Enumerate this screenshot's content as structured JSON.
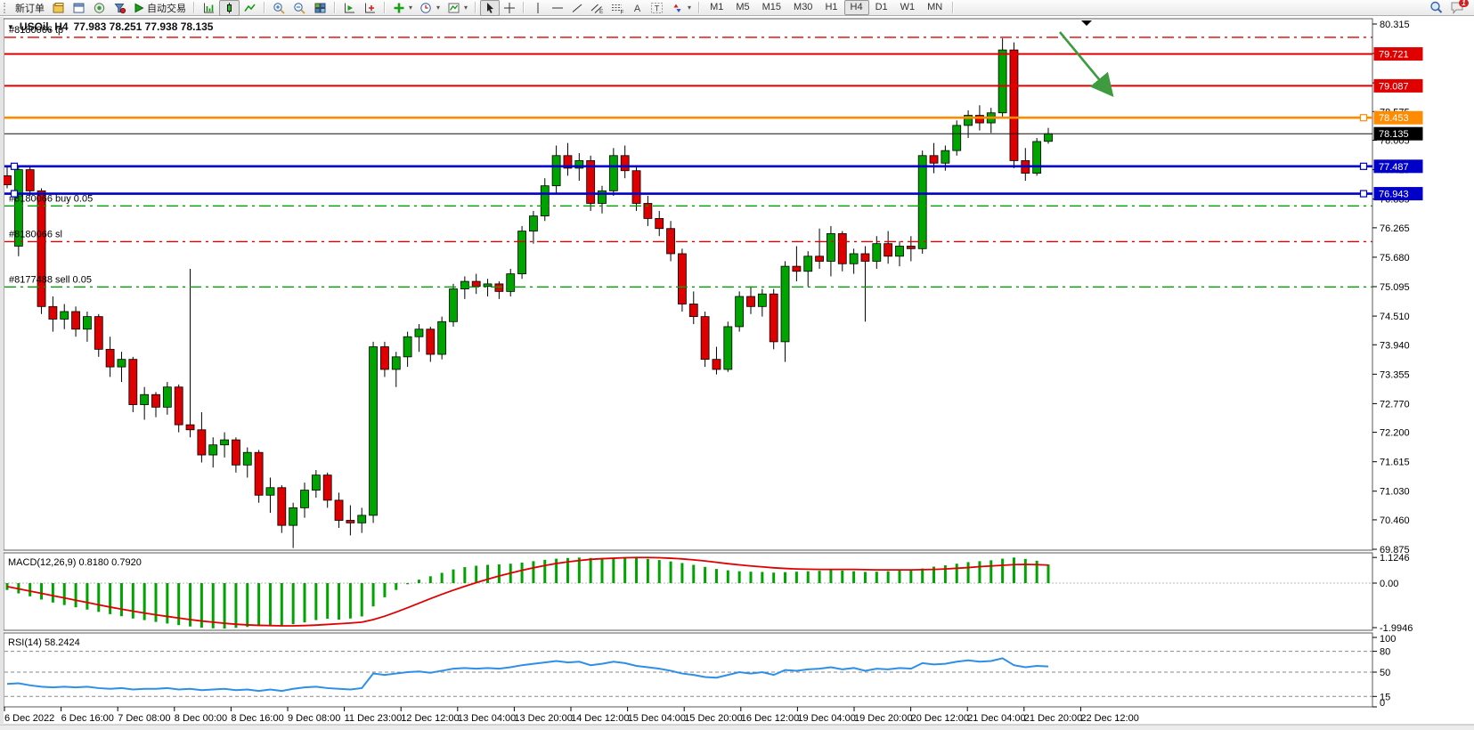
{
  "toolbar": {
    "new_order": "新订单",
    "autotrading": "自动交易",
    "timeframes": [
      "M1",
      "M5",
      "M15",
      "M30",
      "H1",
      "H4",
      "D1",
      "W1",
      "MN"
    ],
    "active_timeframe": "H4",
    "chat_badge": "1",
    "icon_names": [
      "market-watch-icon",
      "profiles-icon",
      "navigator-icon",
      "data-window-icon",
      "bar-chart-icon",
      "candlestick-chart-icon",
      "line-chart-icon",
      "zoom-in-icon",
      "zoom-out-icon",
      "tile-windows-icon",
      "auto-scroll-icon",
      "chart-shift-icon",
      "indicators-icon",
      "periods-icon",
      "templates-icon",
      "cursor-icon",
      "crosshair-icon",
      "vertical-line-icon",
      "horizontal-line-icon",
      "trendline-icon",
      "equidistant-channel-icon",
      "fibonacci-icon",
      "text-icon",
      "text-label-icon",
      "arrows-icon",
      "search-icon",
      "chat-icon"
    ]
  },
  "chart": {
    "symbol": "USOil, H4",
    "ohlc": "77.983 78.251 77.938 78.135",
    "current_price": 78.135,
    "orders": [
      {
        "label": "#8180066 tp",
        "price": 80.05,
        "color": "#e00000"
      },
      {
        "label": "#8180066 buy 0.05",
        "price": 76.7,
        "color": "#00a400"
      },
      {
        "label": "#8180066 sl",
        "price": 75.99,
        "color": "#e00000"
      },
      {
        "label": "#8177488 sell 0.05",
        "price": 75.09,
        "color": "#00a400"
      }
    ],
    "levels": [
      {
        "price": 79.721,
        "color": "#e00000",
        "width": 2,
        "handles": "none"
      },
      {
        "price": 79.087,
        "color": "#e00000",
        "width": 2,
        "handles": "none"
      },
      {
        "price": 78.453,
        "color": "#ff8c00",
        "width": 2.6,
        "handles": "right"
      },
      {
        "price": 77.487,
        "color": "#0000c8",
        "width": 2.6,
        "handles": "both"
      },
      {
        "price": 76.943,
        "color": "#0000c8",
        "width": 2.6,
        "handles": "both"
      }
    ],
    "price_axis_tags": [
      {
        "price": 79.721,
        "bg": "#e00000"
      },
      {
        "price": 79.087,
        "bg": "#e00000"
      },
      {
        "price": 78.453,
        "bg": "#ff8c00"
      },
      {
        "price": 78.135,
        "bg": "#000000"
      },
      {
        "price": 77.487,
        "bg": "#0000c8"
      },
      {
        "price": 76.943,
        "bg": "#0000c8"
      }
    ],
    "colors": {
      "up": "#00a400",
      "down": "#de0000",
      "wick": "#000000",
      "macd_hist": "#00a400",
      "macd_signal": "#e00000",
      "rsi_line": "#2e8fe6",
      "arrow": "#3f9b3f"
    }
  },
  "indicators": {
    "macd": {
      "label": "MACD(12,26,9) 0.8180 0.7920",
      "ticks": [
        "1.1246",
        "0.00",
        "-1.9946"
      ],
      "tick_values": [
        1.1246,
        0,
        -1.9946
      ]
    },
    "rsi": {
      "label": "RSI(14) 58.2424",
      "ticks": [
        "100",
        "80",
        "50",
        "15",
        "0"
      ],
      "tick_values": [
        100,
        80,
        50,
        15,
        0
      ],
      "levels": [
        80,
        50,
        15
      ]
    }
  },
  "chart_data": {
    "type": "candlestick",
    "symbol": "USOil",
    "timeframe": "H4",
    "title": "USOil, H4  77.983 78.251 77.938 78.135",
    "y_axis_ticks": [
      80.315,
      79.73,
      79.145,
      78.575,
      78.005,
      77.42,
      76.835,
      76.265,
      75.68,
      75.095,
      74.51,
      73.94,
      73.355,
      72.77,
      72.2,
      71.615,
      71.03,
      70.46,
      69.875
    ],
    "x_labels": [
      "6 Dec 2022",
      "6 Dec 16:00",
      "7 Dec 08:00",
      "8 Dec 00:00",
      "8 Dec 16:00",
      "9 Dec 08:00",
      "11 Dec 23:00",
      "12 Dec 12:00",
      "13 Dec 04:00",
      "13 Dec 20:00",
      "14 Dec 12:00",
      "15 Dec 04:00",
      "15 Dec 20:00",
      "16 Dec 12:00",
      "19 Dec 04:00",
      "19 Dec 20:00",
      "20 Dec 12:00",
      "21 Dec 04:00",
      "21 Dec 20:00",
      "22 Dec 12:00"
    ],
    "candles_ohlc": [
      [
        77.3,
        77.48,
        77.05,
        77.12
      ],
      [
        75.9,
        77.5,
        75.7,
        77.42
      ],
      [
        77.42,
        77.48,
        76.9,
        77.0
      ],
      [
        77.0,
        77.05,
        74.55,
        74.7
      ],
      [
        74.7,
        74.9,
        74.2,
        74.45
      ],
      [
        74.45,
        74.75,
        74.25,
        74.6
      ],
      [
        74.6,
        74.7,
        74.1,
        74.25
      ],
      [
        74.25,
        74.6,
        74.0,
        74.5
      ],
      [
        74.5,
        74.55,
        73.7,
        73.85
      ],
      [
        73.85,
        74.1,
        73.3,
        73.5
      ],
      [
        73.5,
        73.8,
        73.2,
        73.65
      ],
      [
        73.65,
        73.7,
        72.6,
        72.75
      ],
      [
        72.75,
        73.1,
        72.45,
        72.95
      ],
      [
        72.95,
        73.0,
        72.5,
        72.7
      ],
      [
        72.7,
        73.2,
        72.55,
        73.1
      ],
      [
        73.1,
        73.15,
        72.2,
        72.35
      ],
      [
        72.35,
        75.45,
        72.1,
        72.25
      ],
      [
        72.25,
        72.6,
        71.6,
        71.75
      ],
      [
        71.75,
        72.1,
        71.5,
        71.95
      ],
      [
        71.95,
        72.2,
        71.7,
        72.05
      ],
      [
        72.05,
        72.1,
        71.4,
        71.55
      ],
      [
        71.55,
        71.9,
        71.3,
        71.8
      ],
      [
        71.8,
        71.85,
        70.8,
        70.95
      ],
      [
        70.95,
        71.3,
        70.6,
        71.1
      ],
      [
        71.1,
        71.15,
        70.2,
        70.35
      ],
      [
        70.35,
        70.8,
        69.9,
        70.7
      ],
      [
        70.7,
        71.2,
        70.5,
        71.05
      ],
      [
        71.05,
        71.45,
        70.9,
        71.35
      ],
      [
        71.35,
        71.4,
        70.7,
        70.85
      ],
      [
        70.85,
        71.0,
        70.3,
        70.45
      ],
      [
        70.45,
        70.75,
        70.15,
        70.4
      ],
      [
        70.4,
        70.7,
        70.2,
        70.55
      ],
      [
        70.55,
        74.0,
        70.4,
        73.9
      ],
      [
        73.9,
        74.0,
        73.3,
        73.45
      ],
      [
        73.45,
        73.8,
        73.1,
        73.7
      ],
      [
        73.7,
        74.2,
        73.5,
        74.1
      ],
      [
        74.1,
        74.35,
        73.8,
        74.25
      ],
      [
        74.25,
        74.3,
        73.6,
        73.75
      ],
      [
        73.75,
        74.5,
        73.65,
        74.4
      ],
      [
        74.4,
        75.15,
        74.3,
        75.05
      ],
      [
        75.05,
        75.3,
        74.85,
        75.2
      ],
      [
        75.2,
        75.35,
        74.95,
        75.1
      ],
      [
        75.1,
        75.25,
        74.9,
        75.15
      ],
      [
        75.15,
        75.2,
        74.85,
        75.0
      ],
      [
        75.0,
        75.45,
        74.9,
        75.35
      ],
      [
        75.35,
        76.3,
        75.25,
        76.2
      ],
      [
        76.2,
        76.6,
        75.95,
        76.5
      ],
      [
        76.5,
        77.25,
        76.4,
        77.1
      ],
      [
        77.1,
        77.9,
        76.95,
        77.7
      ],
      [
        77.7,
        77.95,
        77.3,
        77.45
      ],
      [
        77.45,
        77.75,
        77.2,
        77.6
      ],
      [
        77.6,
        77.7,
        76.6,
        76.75
      ],
      [
        76.75,
        77.1,
        76.55,
        77.0
      ],
      [
        77.0,
        77.85,
        76.9,
        77.7
      ],
      [
        77.7,
        77.9,
        77.25,
        77.4
      ],
      [
        77.4,
        77.5,
        76.6,
        76.75
      ],
      [
        76.75,
        76.9,
        76.3,
        76.45
      ],
      [
        76.45,
        76.6,
        76.1,
        76.25
      ],
      [
        76.25,
        76.4,
        75.6,
        75.75
      ],
      [
        75.75,
        75.85,
        74.6,
        74.75
      ],
      [
        74.75,
        75.0,
        74.35,
        74.5
      ],
      [
        74.5,
        74.6,
        73.5,
        73.65
      ],
      [
        73.65,
        73.9,
        73.35,
        73.45
      ],
      [
        73.45,
        74.4,
        73.4,
        74.3
      ],
      [
        74.3,
        75.0,
        74.2,
        74.9
      ],
      [
        74.9,
        75.1,
        74.55,
        74.7
      ],
      [
        74.7,
        75.05,
        74.5,
        74.95
      ],
      [
        74.95,
        75.05,
        73.85,
        74.0
      ],
      [
        74.0,
        75.6,
        73.6,
        75.5
      ],
      [
        75.5,
        75.9,
        75.2,
        75.4
      ],
      [
        75.4,
        75.8,
        75.1,
        75.7
      ],
      [
        75.7,
        76.25,
        75.45,
        75.6
      ],
      [
        75.6,
        76.3,
        75.3,
        76.15
      ],
      [
        76.15,
        76.2,
        75.4,
        75.55
      ],
      [
        75.55,
        75.85,
        75.35,
        75.75
      ],
      [
        75.75,
        75.9,
        74.4,
        75.6
      ],
      [
        75.6,
        76.1,
        75.45,
        75.95
      ],
      [
        75.95,
        76.2,
        75.55,
        75.7
      ],
      [
        75.7,
        76.0,
        75.5,
        75.9
      ],
      [
        75.9,
        76.1,
        75.6,
        75.85
      ],
      [
        75.85,
        77.8,
        75.75,
        77.7
      ],
      [
        77.7,
        77.95,
        77.35,
        77.55
      ],
      [
        77.55,
        77.9,
        77.4,
        77.8
      ],
      [
        77.8,
        78.4,
        77.7,
        78.3
      ],
      [
        78.3,
        78.6,
        78.05,
        78.5
      ],
      [
        78.5,
        78.7,
        78.2,
        78.35
      ],
      [
        78.35,
        78.65,
        78.15,
        78.55
      ],
      [
        78.55,
        80.03,
        78.45,
        79.8
      ],
      [
        79.8,
        79.95,
        77.45,
        77.6
      ],
      [
        77.6,
        77.85,
        77.2,
        77.35
      ],
      [
        77.35,
        78.05,
        77.3,
        77.98
      ],
      [
        77.983,
        78.251,
        77.938,
        78.135
      ]
    ],
    "macd_histogram": [
      -0.3,
      -0.45,
      -0.58,
      -0.72,
      -0.85,
      -0.96,
      -1.06,
      -1.16,
      -1.26,
      -1.36,
      -1.45,
      -1.55,
      -1.62,
      -1.7,
      -1.77,
      -1.84,
      -1.9,
      -1.95,
      -1.98,
      -1.99,
      -1.96,
      -1.92,
      -1.88,
      -1.83,
      -1.86,
      -1.8,
      -1.72,
      -1.62,
      -1.56,
      -1.6,
      -1.55,
      -1.46,
      -1.02,
      -0.62,
      -0.3,
      -0.05,
      0.15,
      0.3,
      0.45,
      0.6,
      0.7,
      0.76,
      0.8,
      0.82,
      0.85,
      0.9,
      0.96,
      1.02,
      1.07,
      1.1,
      1.12,
      1.1,
      1.08,
      1.1,
      1.12,
      1.1,
      1.06,
      1.01,
      0.95,
      0.88,
      0.8,
      0.71,
      0.62,
      0.56,
      0.52,
      0.5,
      0.49,
      0.46,
      0.48,
      0.5,
      0.52,
      0.54,
      0.57,
      0.55,
      0.52,
      0.49,
      0.5,
      0.52,
      0.55,
      0.56,
      0.64,
      0.72,
      0.78,
      0.85,
      0.92,
      0.96,
      1.0,
      1.07,
      1.12,
      1.06,
      0.98,
      0.82
    ],
    "macd_signal": [
      -0.15,
      -0.25,
      -0.35,
      -0.45,
      -0.55,
      -0.65,
      -0.75,
      -0.85,
      -0.95,
      -1.05,
      -1.14,
      -1.23,
      -1.31,
      -1.39,
      -1.46,
      -1.53,
      -1.6,
      -1.66,
      -1.71,
      -1.76,
      -1.8,
      -1.83,
      -1.85,
      -1.86,
      -1.87,
      -1.87,
      -1.86,
      -1.84,
      -1.81,
      -1.78,
      -1.75,
      -1.71,
      -1.6,
      -1.45,
      -1.27,
      -1.08,
      -0.88,
      -0.68,
      -0.49,
      -0.31,
      -0.14,
      0.02,
      0.17,
      0.31,
      0.44,
      0.56,
      0.67,
      0.77,
      0.86,
      0.93,
      0.99,
      1.04,
      1.07,
      1.09,
      1.11,
      1.12,
      1.12,
      1.11,
      1.09,
      1.06,
      1.02,
      0.97,
      0.91,
      0.85,
      0.8,
      0.75,
      0.71,
      0.67,
      0.64,
      0.62,
      0.61,
      0.6,
      0.6,
      0.6,
      0.6,
      0.59,
      0.58,
      0.58,
      0.58,
      0.58,
      0.59,
      0.6,
      0.62,
      0.65,
      0.68,
      0.72,
      0.75,
      0.78,
      0.81,
      0.82,
      0.81,
      0.79
    ],
    "rsi": [
      33,
      34,
      31,
      29,
      28,
      29,
      28,
      29,
      27,
      26,
      27,
      25,
      26,
      26,
      27,
      25,
      26,
      24,
      25,
      26,
      24,
      25,
      23,
      25,
      23,
      26,
      28,
      29,
      27,
      26,
      25,
      27,
      48,
      46,
      48,
      50,
      51,
      49,
      52,
      55,
      56,
      55,
      56,
      55,
      57,
      60,
      62,
      64,
      66,
      64,
      65,
      60,
      62,
      65,
      63,
      59,
      57,
      55,
      52,
      48,
      46,
      43,
      42,
      46,
      50,
      48,
      50,
      46,
      53,
      52,
      54,
      55,
      57,
      54,
      56,
      52,
      55,
      54,
      56,
      55,
      63,
      61,
      62,
      65,
      67,
      65,
      66,
      70,
      60,
      57,
      59,
      58.24
    ],
    "annotations": {
      "trend_arrow": {
        "from_xy": [
          1190,
          36
        ],
        "to_xy": [
          1248,
          106
        ],
        "color": "#3f9b3f"
      }
    }
  }
}
